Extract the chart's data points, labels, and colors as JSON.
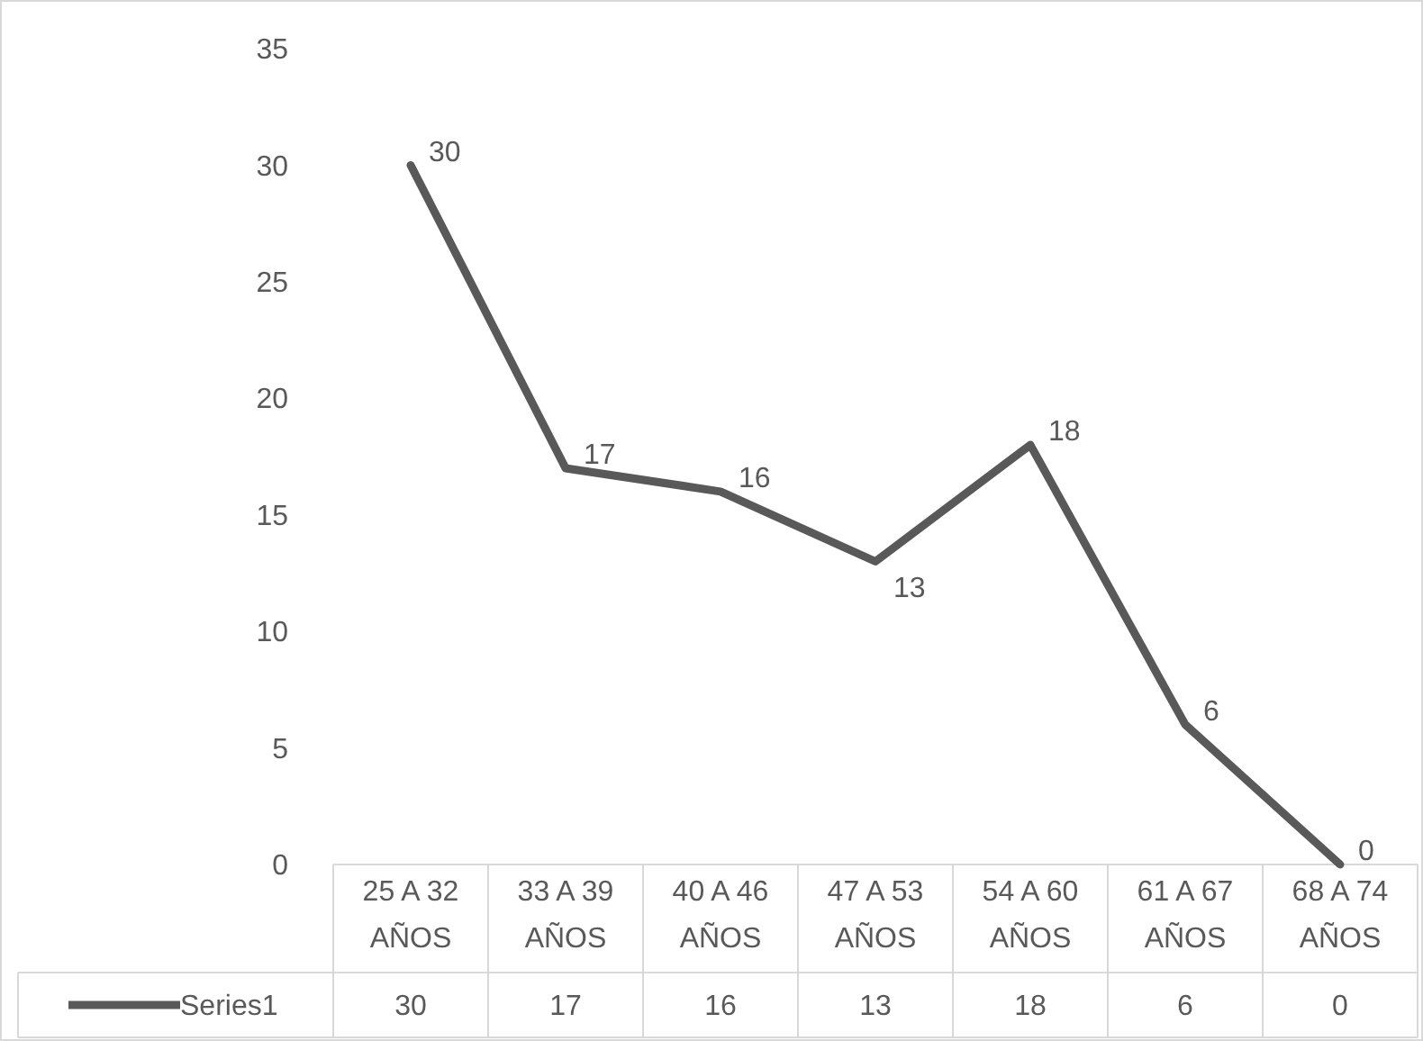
{
  "chart_data": {
    "type": "line",
    "categories": [
      "25 A 32 AÑOS",
      "33 A 39 AÑOS",
      "40 A 46 AÑOS",
      "47 A 53 AÑOS",
      "54 A 60 AÑOS",
      "61 A 67 AÑOS",
      "68 A 74 AÑOS"
    ],
    "series": [
      {
        "name": "Series1",
        "color": "#595959",
        "values": [
          30,
          17,
          16,
          13,
          18,
          6,
          0
        ]
      }
    ],
    "annotations": [
      {
        "text": "30",
        "x": "25 A 32 AÑOS",
        "y": 30
      },
      {
        "text": "17",
        "x": "33 A 39 AÑOS",
        "y": 17
      },
      {
        "text": "16",
        "x": "40 A 46 AÑOS",
        "y": 16
      },
      {
        "text": "13",
        "x": "47 A 53 AÑOS",
        "y": 13
      },
      {
        "text": "18",
        "x": "54 A 60 AÑOS",
        "y": 18
      },
      {
        "text": "6",
        "x": "61 A 67 AÑOS",
        "y": 6
      },
      {
        "text": "0",
        "x": "68 A 74 AÑOS",
        "y": 0
      }
    ],
    "ylim": [
      0,
      35
    ],
    "yticks": [
      0,
      5,
      10,
      15,
      20,
      25,
      30,
      35
    ],
    "grid": false,
    "data_labels": true,
    "legend": "bottom",
    "marker": "none",
    "line_style": "solid"
  }
}
